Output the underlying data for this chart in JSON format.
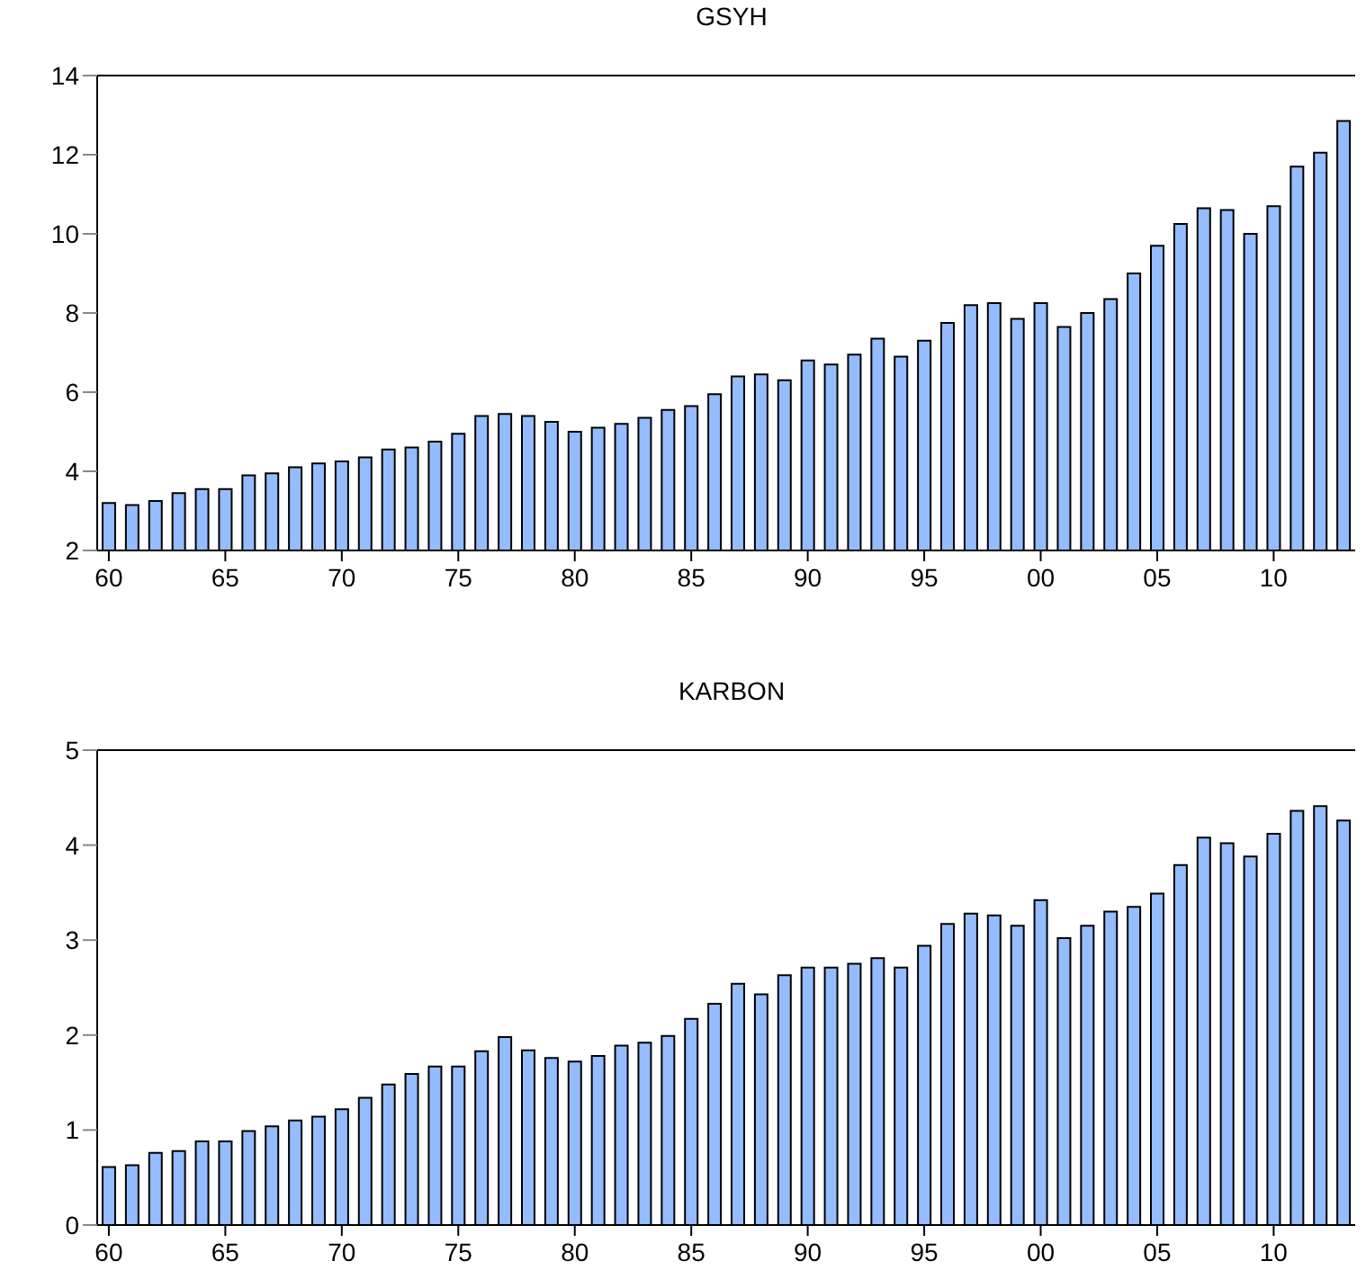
{
  "chart_data": [
    {
      "type": "bar",
      "title": "GSYH",
      "categories": [
        "60",
        null,
        null,
        null,
        null,
        "65",
        null,
        null,
        null,
        null,
        "70",
        null,
        null,
        null,
        null,
        "75",
        null,
        null,
        null,
        null,
        "80",
        null,
        null,
        null,
        null,
        "85",
        null,
        null,
        null,
        null,
        "90",
        null,
        null,
        null,
        null,
        "95",
        null,
        null,
        null,
        null,
        "00",
        null,
        null,
        null,
        null,
        "05",
        null,
        null,
        null,
        null,
        "10",
        null,
        null,
        null
      ],
      "values": [
        3.2,
        3.15,
        3.25,
        3.45,
        3.55,
        3.55,
        3.9,
        3.95,
        4.1,
        4.2,
        4.25,
        4.35,
        4.55,
        4.6,
        4.75,
        4.95,
        5.4,
        5.45,
        5.4,
        5.25,
        5.0,
        5.1,
        5.2,
        5.35,
        5.55,
        5.65,
        5.95,
        6.4,
        6.45,
        6.3,
        6.8,
        6.7,
        6.95,
        7.35,
        6.9,
        7.3,
        7.75,
        8.2,
        8.25,
        7.85,
        8.25,
        7.65,
        8.0,
        8.35,
        9.0,
        9.7,
        10.25,
        10.65,
        10.6,
        10.0,
        10.7,
        11.7,
        12.05,
        12.85
      ],
      "color": "#94bcff",
      "ylim": [
        2,
        14
      ],
      "yticks": [
        2,
        4,
        6,
        8,
        10,
        12,
        14
      ]
    },
    {
      "type": "bar",
      "title": "KARBON",
      "categories": [
        "60",
        null,
        null,
        null,
        null,
        "65",
        null,
        null,
        null,
        null,
        "70",
        null,
        null,
        null,
        null,
        "75",
        null,
        null,
        null,
        null,
        "80",
        null,
        null,
        null,
        null,
        "85",
        null,
        null,
        null,
        null,
        "90",
        null,
        null,
        null,
        null,
        "95",
        null,
        null,
        null,
        null,
        "00",
        null,
        null,
        null,
        null,
        "05",
        null,
        null,
        null,
        null,
        "10",
        null,
        null,
        null
      ],
      "values": [
        0.61,
        0.63,
        0.76,
        0.78,
        0.88,
        0.88,
        0.99,
        1.04,
        1.1,
        1.14,
        1.22,
        1.34,
        1.48,
        1.59,
        1.67,
        1.67,
        1.83,
        1.98,
        1.84,
        1.76,
        1.72,
        1.78,
        1.89,
        1.92,
        1.99,
        2.17,
        2.33,
        2.54,
        2.43,
        2.63,
        2.71,
        2.71,
        2.75,
        2.81,
        2.71,
        2.94,
        3.17,
        3.28,
        3.26,
        3.15,
        3.42,
        3.02,
        3.15,
        3.3,
        3.35,
        3.49,
        3.79,
        4.08,
        4.02,
        3.88,
        4.12,
        4.36,
        4.41,
        4.26
      ],
      "color": "#94bcff",
      "ylim": [
        0,
        5
      ],
      "yticks": [
        0,
        1,
        2,
        3,
        4,
        5
      ]
    }
  ]
}
